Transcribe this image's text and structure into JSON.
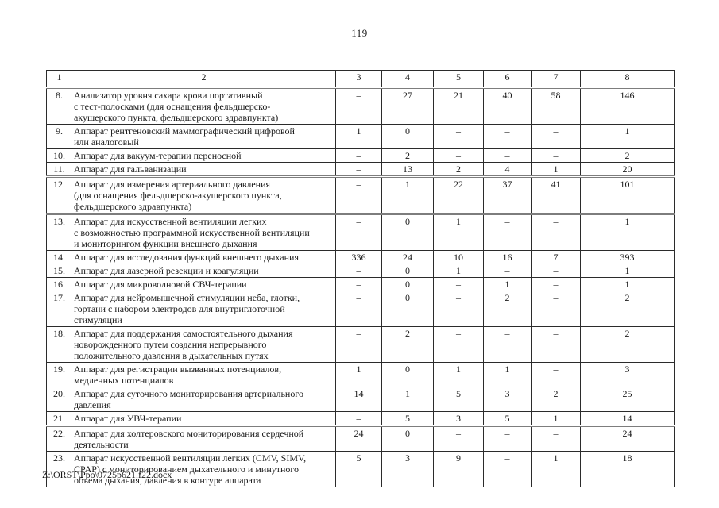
{
  "page": {
    "number": "119",
    "footer_path": "Z:\\ORST\\Ppo\\0725p621.f22.docx"
  },
  "table": {
    "header": [
      "1",
      "2",
      "3",
      "4",
      "5",
      "6",
      "7",
      "8"
    ],
    "rows": [
      {
        "num": "8.",
        "name": "Анализатор уровня сахара крови портативный\nс тест-полосками (для оснащения фельдшерско-\nакушерского пункта, фельдшерского здравпункта)",
        "values": [
          "–",
          "27",
          "21",
          "40",
          "58",
          "146"
        ],
        "sep": false
      },
      {
        "num": "9.",
        "name": "Аппарат рентгеновский маммографический цифровой\nили аналоговый",
        "values": [
          "1",
          "0",
          "–",
          "–",
          "–",
          "1"
        ],
        "sep": false
      },
      {
        "num": "10.",
        "name": "Аппарат для вакуум-терапии переносной",
        "values": [
          "–",
          "2",
          "–",
          "–",
          "–",
          "2"
        ],
        "sep": false
      },
      {
        "num": "11.",
        "name": "Аппарат для гальванизации",
        "values": [
          "–",
          "13",
          "2",
          "4",
          "1",
          "20"
        ],
        "sep": true
      },
      {
        "num": "12.",
        "name": "Аппарат для измерения артериального давления\n(для оснащения фельдшерско-акушерского пункта,\nфельдшерского здравпункта)",
        "values": [
          "–",
          "1",
          "22",
          "37",
          "41",
          "101"
        ],
        "sep": true
      },
      {
        "num": "13.",
        "name": "Аппарат для искусственной вентиляции легких\nс возможностью программной искусственной вентиляции\nи мониторингом функции внешнего дыхания",
        "values": [
          "–",
          "0",
          "1",
          "–",
          "–",
          "1"
        ],
        "sep": false
      },
      {
        "num": "14.",
        "name": "Аппарат для исследования функций внешнего дыхания",
        "values": [
          "336",
          "24",
          "10",
          "16",
          "7",
          "393"
        ],
        "sep": false
      },
      {
        "num": "15.",
        "name": "Аппарат для лазерной резекции и коагуляции",
        "values": [
          "–",
          "0",
          "1",
          "–",
          "–",
          "1"
        ],
        "sep": false
      },
      {
        "num": "16.",
        "name": "Аппарат для микроволновой СВЧ-терапии",
        "values": [
          "–",
          "0",
          "–",
          "1",
          "–",
          "1"
        ],
        "sep": false
      },
      {
        "num": "17.",
        "name": "Аппарат для нейромышечной стимуляции неба, глотки,\nгортани с набором электродов для внутриглоточной\nстимуляции",
        "values": [
          "–",
          "0",
          "–",
          "2",
          "–",
          "2"
        ],
        "sep": false
      },
      {
        "num": "18.",
        "name": "Аппарат для поддержания самостоятельного дыхания\nноворожденного путем создания непрерывного\nположительного давления в дыхательных путях",
        "values": [
          "–",
          "2",
          "–",
          "–",
          "–",
          "2"
        ],
        "sep": false
      },
      {
        "num": "19.",
        "name": "Аппарат для регистрации вызванных потенциалов,\nмедленных потенциалов",
        "values": [
          "1",
          "0",
          "1",
          "1",
          "–",
          "3"
        ],
        "sep": false
      },
      {
        "num": "20.",
        "name": "Аппарат для суточного мониторирования артериального\nдавления",
        "values": [
          "14",
          "1",
          "5",
          "3",
          "2",
          "25"
        ],
        "sep": false
      },
      {
        "num": "21.",
        "name": "Аппарат для УВЧ-терапии",
        "values": [
          "–",
          "5",
          "3",
          "5",
          "1",
          "14"
        ],
        "sep": true
      },
      {
        "num": "22.",
        "name": "Аппарат для холтеровского мониторирования сердечной\nдеятельности",
        "values": [
          "24",
          "0",
          "–",
          "–",
          "–",
          "24"
        ],
        "sep": false
      },
      {
        "num": "23.",
        "name": "Аппарат искусственной вентиляции легких (CMV, SIMV,\nCPAP) с мониторированием дыхательного и минутного\nобъема дыхания, давления в контуре аппарата",
        "values": [
          "5",
          "3",
          "9",
          "–",
          "1",
          "18"
        ],
        "sep": false
      }
    ]
  }
}
